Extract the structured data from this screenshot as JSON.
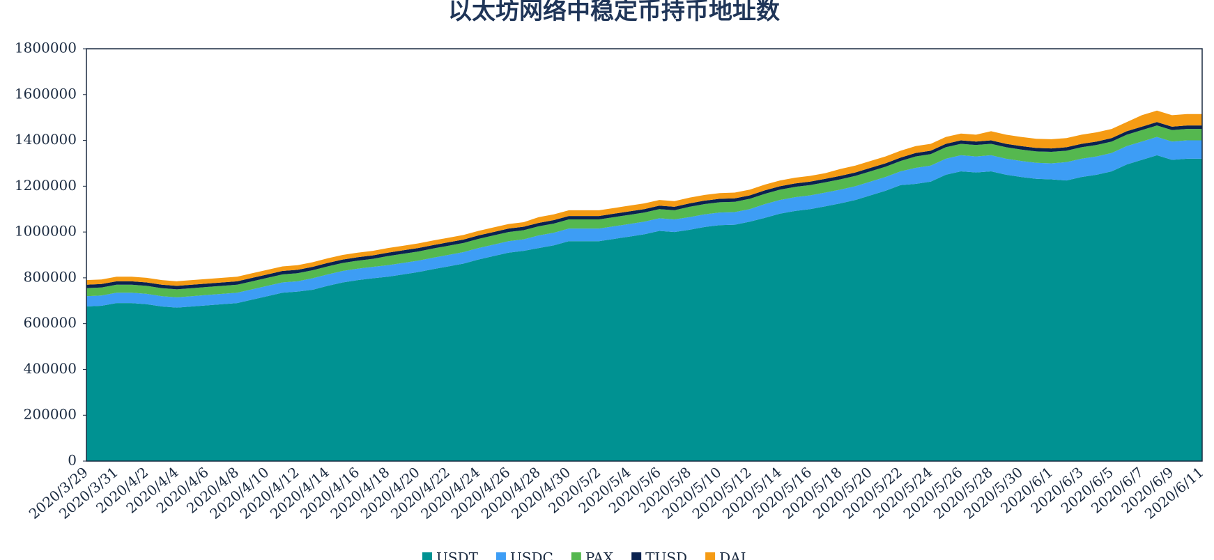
{
  "chart_data": {
    "type": "stacked-area",
    "title": "以太坊网络中稳定币持币地址数",
    "categories": [
      "2020/3/29",
      null,
      "2020/3/31",
      null,
      "2020/4/2",
      null,
      "2020/4/4",
      null,
      "2020/4/6",
      null,
      "2020/4/8",
      null,
      "2020/4/10",
      null,
      "2020/4/12",
      null,
      "2020/4/14",
      null,
      "2020/4/16",
      null,
      "2020/4/18",
      null,
      "2020/4/20",
      null,
      "2020/4/22",
      null,
      "2020/4/24",
      null,
      "2020/4/26",
      null,
      "2020/4/28",
      null,
      "2020/4/30",
      null,
      "2020/5/2",
      null,
      "2020/5/4",
      null,
      "2020/5/6",
      null,
      "2020/5/8",
      null,
      "2020/5/10",
      null,
      "2020/5/12",
      null,
      "2020/5/14",
      null,
      "2020/5/16",
      null,
      "2020/5/18",
      null,
      "2020/5/20",
      null,
      "2020/5/22",
      null,
      "2020/5/24",
      null,
      "2020/5/26",
      null,
      "2020/5/28",
      null,
      "2020/5/30",
      null,
      "2020/6/1",
      null,
      "2020/6/3",
      null,
      "2020/6/5",
      null,
      "2020/6/7",
      null,
      "2020/6/9",
      null,
      "2020/6/11"
    ],
    "series": [
      {
        "name": "USDT",
        "color": "#009292",
        "values": [
          675000,
          678000,
          690000,
          690000,
          685000,
          675000,
          670000,
          675000,
          680000,
          685000,
          690000,
          705000,
          720000,
          735000,
          740000,
          748000,
          765000,
          780000,
          790000,
          798000,
          805000,
          815000,
          825000,
          838000,
          850000,
          862000,
          880000,
          895000,
          910000,
          918000,
          930000,
          942000,
          960000,
          960000,
          960000,
          970000,
          980000,
          990000,
          1005000,
          1000000,
          1010000,
          1022000,
          1030000,
          1032000,
          1045000,
          1062000,
          1080000,
          1092000,
          1100000,
          1112000,
          1125000,
          1140000,
          1160000,
          1180000,
          1205000,
          1210000,
          1220000,
          1250000,
          1265000,
          1260000,
          1265000,
          1250000,
          1240000,
          1232000,
          1230000,
          1225000,
          1240000,
          1250000,
          1265000,
          1295000,
          1315000,
          1335000,
          1315000,
          1320000,
          1320000
        ]
      },
      {
        "name": "USDC",
        "color": "#3d9df5",
        "values": [
          45000,
          45000,
          45000,
          45000,
          45000,
          45000,
          45000,
          45000,
          45000,
          45000,
          45000,
          45000,
          45000,
          45000,
          45000,
          50000,
          50000,
          50000,
          50000,
          50000,
          50000,
          50000,
          50000,
          50000,
          50000,
          50000,
          50000,
          50000,
          50000,
          50000,
          55000,
          55000,
          55000,
          55000,
          55000,
          55000,
          55000,
          55000,
          55000,
          55000,
          55000,
          55000,
          55000,
          55000,
          55000,
          60000,
          60000,
          60000,
          60000,
          60000,
          60000,
          60000,
          60000,
          60000,
          60000,
          70000,
          70000,
          70000,
          70000,
          70000,
          70000,
          70000,
          70000,
          70000,
          70000,
          80000,
          80000,
          80000,
          80000,
          80000,
          80000,
          80000,
          80000,
          80000,
          80000
        ]
      },
      {
        "name": "PAX",
        "color": "#55b84f",
        "values": [
          35000,
          35000,
          35000,
          35000,
          35000,
          35000,
          35000,
          35000,
          35000,
          35000,
          35000,
          35000,
          35000,
          35000,
          35000,
          35000,
          35000,
          35000,
          35000,
          35000,
          40000,
          40000,
          40000,
          40000,
          40000,
          40000,
          40000,
          40000,
          40000,
          40000,
          40000,
          40000,
          40000,
          40000,
          40000,
          40000,
          40000,
          40000,
          40000,
          40000,
          45000,
          45000,
          45000,
          45000,
          45000,
          45000,
          45000,
          45000,
          45000,
          45000,
          45000,
          45000,
          45000,
          45000,
          45000,
          50000,
          50000,
          50000,
          50000,
          50000,
          50000,
          50000,
          50000,
          50000,
          50000,
          50000,
          50000,
          50000,
          50000,
          50000,
          50000,
          50000,
          50000,
          50000,
          50000
        ]
      },
      {
        "name": "TUSD",
        "color": "#0b2350",
        "values": [
          15000,
          15000,
          15000,
          15000,
          15000,
          15000,
          15000,
          15000,
          15000,
          15000,
          15000,
          15000,
          15000,
          15000,
          15000,
          15000,
          15000,
          15000,
          15000,
          15000,
          15000,
          15000,
          15000,
          15000,
          15000,
          15000,
          15000,
          15000,
          15000,
          15000,
          15000,
          15000,
          15000,
          15000,
          15000,
          15000,
          15000,
          15000,
          15000,
          15000,
          15000,
          15000,
          15000,
          15000,
          15000,
          15000,
          15000,
          15000,
          15000,
          15000,
          15000,
          15000,
          15000,
          15000,
          15000,
          15000,
          15000,
          15000,
          15000,
          15000,
          15000,
          15000,
          15000,
          15000,
          15000,
          15000,
          15000,
          15000,
          15000,
          15000,
          15000,
          15000,
          15000,
          15000,
          15000
        ]
      },
      {
        "name": "DAI",
        "color": "#f59b14",
        "values": [
          20000,
          20000,
          20000,
          20000,
          20000,
          20000,
          20000,
          20000,
          20000,
          20000,
          20000,
          20000,
          20000,
          20000,
          20000,
          20000,
          20000,
          20000,
          20000,
          20000,
          20000,
          20000,
          20000,
          20000,
          20000,
          20000,
          20000,
          20000,
          20000,
          20000,
          25000,
          25000,
          25000,
          25000,
          25000,
          25000,
          25000,
          25000,
          25000,
          25000,
          25000,
          25000,
          25000,
          25000,
          25000,
          25000,
          25000,
          25000,
          25000,
          25000,
          30000,
          30000,
          30000,
          30000,
          30000,
          30000,
          30000,
          30000,
          30000,
          30000,
          40000,
          40000,
          40000,
          40000,
          40000,
          40000,
          40000,
          40000,
          40000,
          40000,
          50000,
          50000,
          50000,
          50000,
          50000
        ]
      }
    ],
    "ylim": [
      0,
      1800000
    ],
    "yticks": [
      0,
      200000,
      400000,
      600000,
      800000,
      1000000,
      1200000,
      1400000,
      1600000,
      1800000
    ],
    "legend": "bottom"
  }
}
